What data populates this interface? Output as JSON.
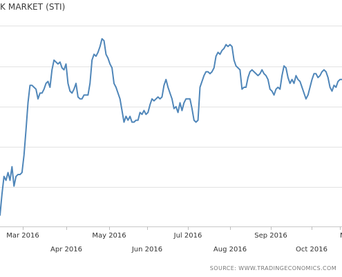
{
  "chart_data": {
    "type": "line",
    "title": "K MARKET (STI)",
    "xlabel": "",
    "ylabel": "",
    "x_tick_labels": [
      "Mar 2016",
      "Apr 2016",
      "May 2016",
      "Jun 2016",
      "Jul 2016",
      "Aug 2016",
      "Sep 2016",
      "Oct 2016",
      "N"
    ],
    "y_tick_labels": [],
    "ylim": [
      0,
      1
    ],
    "grid": {
      "horizontal": true,
      "vertical": false
    },
    "legend": "none",
    "line_color": "#4f86b9",
    "series": [
      {
        "values": [
          0.04,
          0.15,
          0.24,
          0.22,
          0.26,
          0.22,
          0.29,
          0.19,
          0.24,
          0.25,
          0.25,
          0.26,
          0.35,
          0.48,
          0.62,
          0.71,
          0.71,
          0.7,
          0.69,
          0.64,
          0.67,
          0.67,
          0.69,
          0.72,
          0.73,
          0.7,
          0.79,
          0.84,
          0.83,
          0.82,
          0.83,
          0.8,
          0.79,
          0.82,
          0.72,
          0.68,
          0.67,
          0.69,
          0.72,
          0.65,
          0.64,
          0.64,
          0.66,
          0.66,
          0.66,
          0.72,
          0.84,
          0.87,
          0.86,
          0.88,
          0.91,
          0.95,
          0.94,
          0.87,
          0.85,
          0.82,
          0.8,
          0.72,
          0.7,
          0.67,
          0.64,
          0.58,
          0.52,
          0.55,
          0.53,
          0.55,
          0.52,
          0.52,
          0.53,
          0.53,
          0.57,
          0.56,
          0.58,
          0.56,
          0.57,
          0.61,
          0.64,
          0.63,
          0.64,
          0.65,
          0.64,
          0.65,
          0.71,
          0.74,
          0.7,
          0.67,
          0.64,
          0.59,
          0.6,
          0.57,
          0.62,
          0.58,
          0.62,
          0.64,
          0.64,
          0.64,
          0.59,
          0.53,
          0.52,
          0.53,
          0.7,
          0.73,
          0.76,
          0.78,
          0.78,
          0.77,
          0.78,
          0.8,
          0.86,
          0.88,
          0.87,
          0.89,
          0.9,
          0.92,
          0.91,
          0.92,
          0.91,
          0.84,
          0.81,
          0.8,
          0.79,
          0.69,
          0.7,
          0.7,
          0.75,
          0.78,
          0.79,
          0.78,
          0.77,
          0.76,
          0.77,
          0.79,
          0.77,
          0.76,
          0.74,
          0.69,
          0.68,
          0.66,
          0.69,
          0.7,
          0.69,
          0.76,
          0.81,
          0.8,
          0.75,
          0.72,
          0.74,
          0.72,
          0.76,
          0.74,
          0.73,
          0.7,
          0.67,
          0.64,
          0.66,
          0.7,
          0.74,
          0.77,
          0.77,
          0.75,
          0.76,
          0.78,
          0.79,
          0.78,
          0.75,
          0.7,
          0.68,
          0.71,
          0.7,
          0.73,
          0.74,
          0.74
        ]
      }
    ]
  },
  "source_note": "SOURCE: WWW.TRADINGECONOMICS.COM"
}
